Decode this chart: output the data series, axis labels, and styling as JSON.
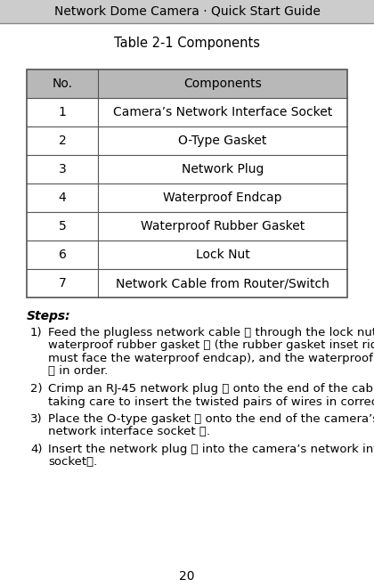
{
  "title_bold": "Network Dome Camera",
  "title_separator": " · ",
  "title_regular": "Quick Start Guide",
  "table_title": "Table 2-1 Components",
  "header_no": "No.",
  "header_components": "Components",
  "rows": [
    [
      "1",
      "Camera’s Network Interface Socket"
    ],
    [
      "2",
      "O-Type Gasket"
    ],
    [
      "3",
      "Network Plug"
    ],
    [
      "4",
      "Waterproof Endcap"
    ],
    [
      "5",
      "Waterproof Rubber Gasket"
    ],
    [
      "6",
      "Lock Nut"
    ],
    [
      "7",
      "Network Cable from Router/Switch"
    ]
  ],
  "steps_label": "Steps:",
  "page_number": "20",
  "header_bg": "#b8b8b8",
  "border_color": "#555555",
  "title_bar_bg": "#cccccc"
}
